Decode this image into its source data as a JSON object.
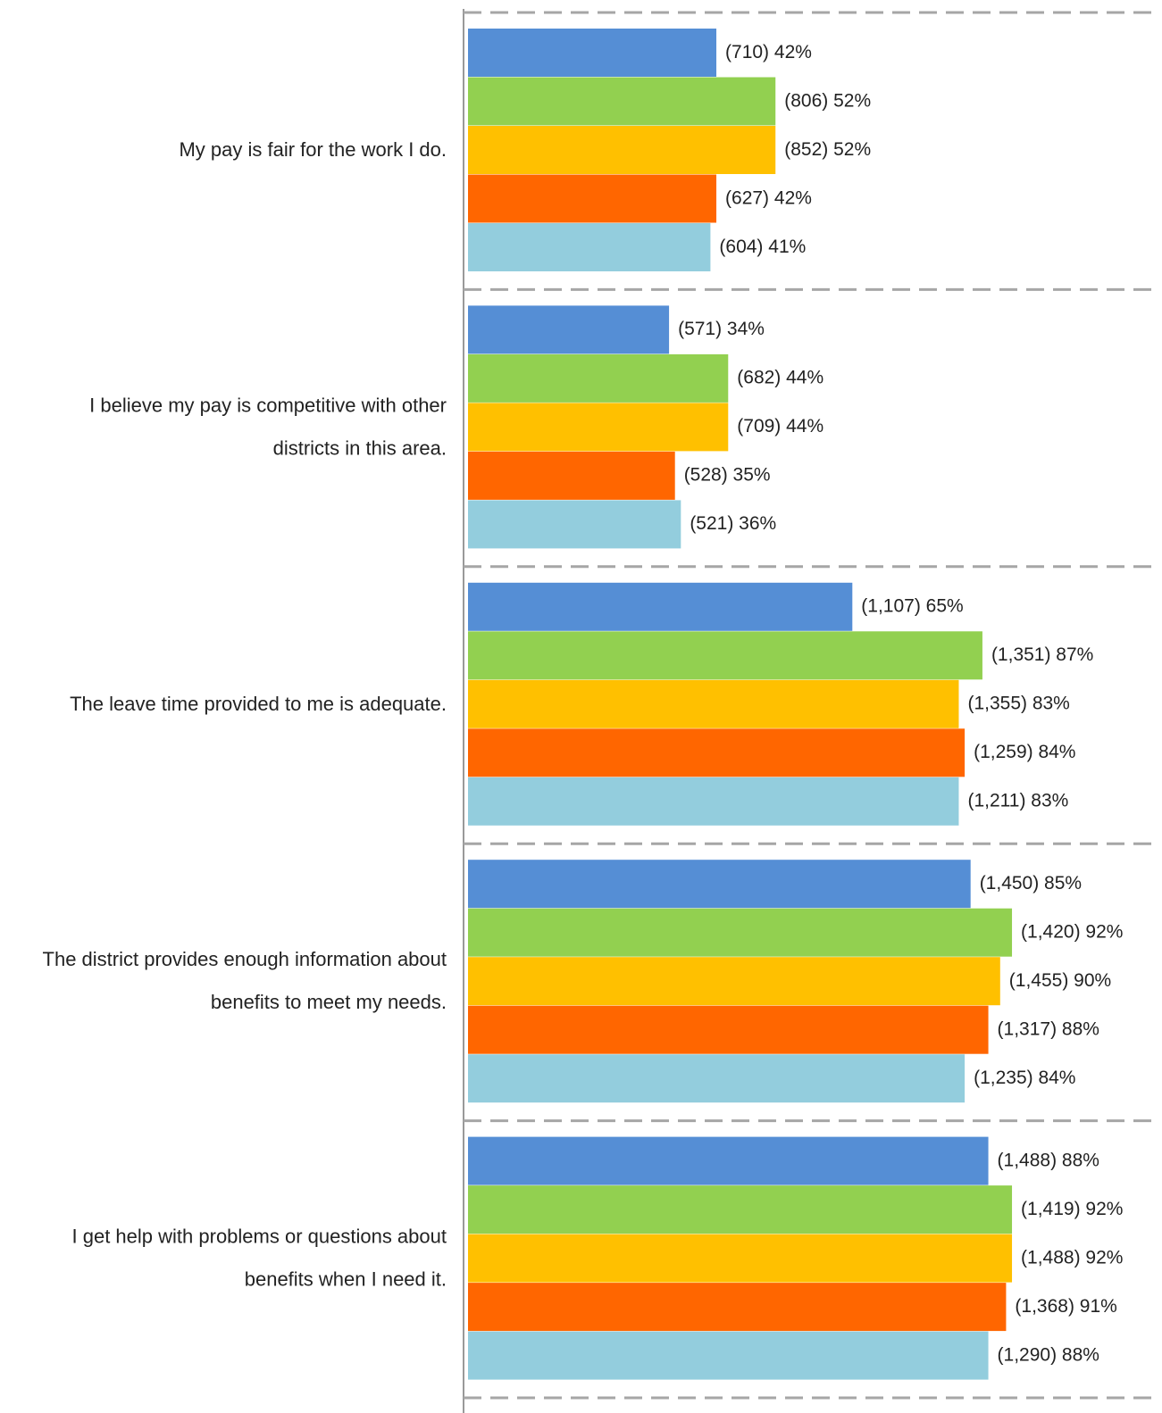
{
  "chart_data": {
    "type": "bar",
    "orientation": "horizontal",
    "categories": [
      [
        "My pay is fair for the work I do."
      ],
      [
        "I believe my pay is competitive with other",
        "districts in this area."
      ],
      [
        "The leave time provided to me is adequate."
      ],
      [
        "The district provides enough information about",
        "benefits to meet my needs."
      ],
      [
        "I get help with problems or questions about",
        "benefits when I need it."
      ]
    ],
    "xlim": [
      0,
      100
    ],
    "series": [
      {
        "color": "#558ed5",
        "values": [
          42,
          34,
          65,
          85,
          88
        ],
        "value_labels": [
          "(710) 42%",
          "(571) 34%",
          "(1,107) 65%",
          "(1,450) 85%",
          "(1,488) 88%"
        ]
      },
      {
        "color": "#92d050",
        "values": [
          52,
          44,
          87,
          92,
          92
        ],
        "value_labels": [
          "(806) 52%",
          "(682) 44%",
          "(1,351) 87%",
          "(1,420) 92%",
          "(1,419) 92%"
        ]
      },
      {
        "color": "#ffc000",
        "values": [
          52,
          44,
          83,
          90,
          92
        ],
        "value_labels": [
          "(852) 52%",
          "(709) 44%",
          "(1,355) 83%",
          "(1,455) 90%",
          "(1,488) 92%"
        ]
      },
      {
        "color": "#ff6600",
        "values": [
          42,
          35,
          84,
          88,
          91
        ],
        "value_labels": [
          "(627) 42%",
          "(528) 35%",
          "(1,259) 84%",
          "(1,317) 88%",
          "(1,368) 91%"
        ]
      },
      {
        "color": "#93cddd",
        "values": [
          41,
          36,
          83,
          84,
          88
        ],
        "value_labels": [
          "(604) 41%",
          "(521) 36%",
          "(1,211) 83%",
          "(1,235) 84%",
          "(1,290) 88%"
        ]
      }
    ]
  }
}
